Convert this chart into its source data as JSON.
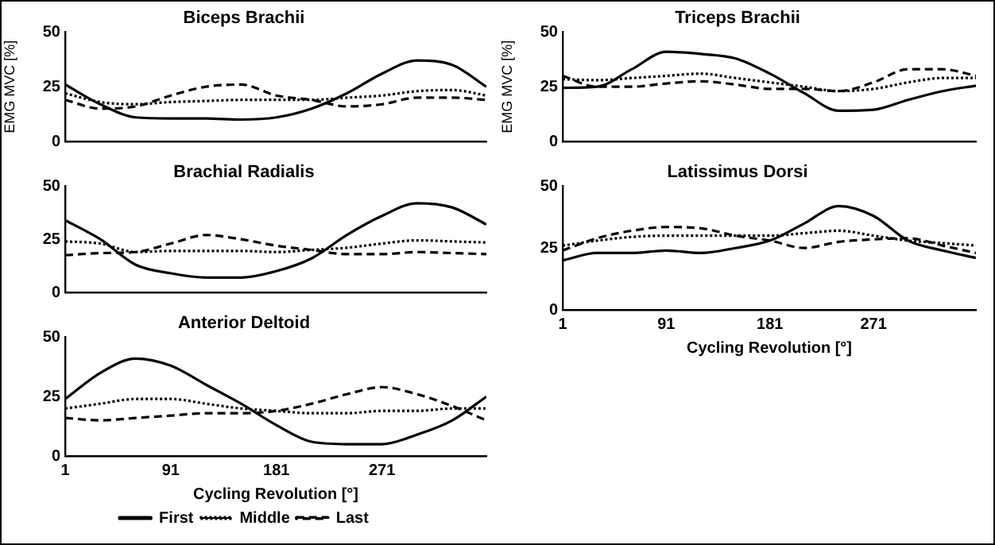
{
  "chart_data": [
    {
      "type": "line",
      "title": "Biceps Brachii",
      "ylabel": "EMG MVC [%]",
      "x": [
        1,
        31,
        61,
        91,
        121,
        151,
        181,
        211,
        241,
        271,
        301,
        331,
        360
      ],
      "xlim": [
        1,
        360
      ],
      "xticks": [
        1,
        91,
        181,
        271
      ],
      "ylim": [
        0,
        50
      ],
      "yticks": [
        0,
        25,
        50
      ],
      "tick_labels": "y",
      "marker": "none",
      "series": [
        {
          "color": "#000000",
          "line_style": "solid",
          "values": [
            26,
            17,
            11,
            10.5,
            10.5,
            10,
            11,
            15,
            22,
            31,
            37,
            35,
            25
          ]
        },
        {
          "color": "#000000",
          "line_style": "dotted",
          "values": [
            22,
            18,
            17,
            18,
            18.5,
            19,
            19,
            19,
            20,
            21,
            23,
            23.5,
            21
          ]
        },
        {
          "color": "#000000",
          "line_style": "dashed",
          "values": [
            19,
            15,
            16,
            21,
            25,
            26,
            21,
            19,
            16,
            17,
            20,
            20,
            19
          ]
        }
      ]
    },
    {
      "type": "line",
      "title": "Triceps Brachii",
      "ylabel": "EMG MVC [%]",
      "x": [
        1,
        31,
        61,
        91,
        121,
        151,
        181,
        211,
        241,
        271,
        301,
        331,
        360
      ],
      "xlim": [
        1,
        360
      ],
      "xticks": [
        1,
        91,
        181,
        271
      ],
      "ylim": [
        0,
        50
      ],
      "yticks": [
        0,
        25,
        50
      ],
      "tick_labels": "y",
      "marker": "none",
      "series": [
        {
          "color": "#000000",
          "line_style": "solid",
          "values": [
            24.5,
            25,
            33,
            41,
            40,
            38,
            31,
            22,
            14,
            14.5,
            19,
            23,
            25.5
          ]
        },
        {
          "color": "#000000",
          "line_style": "dotted",
          "values": [
            28.5,
            28,
            29,
            30,
            31,
            29,
            27,
            25,
            23,
            24,
            27,
            29,
            29
          ]
        },
        {
          "color": "#000000",
          "line_style": "dashed",
          "values": [
            30,
            25,
            25,
            26.5,
            27.5,
            26,
            24,
            24,
            23,
            27,
            33,
            33,
            30
          ]
        }
      ]
    },
    {
      "type": "line",
      "title": "Brachial Radialis",
      "x": [
        1,
        31,
        61,
        91,
        121,
        151,
        181,
        211,
        241,
        271,
        301,
        331,
        360
      ],
      "xlim": [
        1,
        360
      ],
      "xticks": [
        1,
        91,
        181,
        271
      ],
      "ylim": [
        0,
        50
      ],
      "yticks": [
        0,
        25,
        50
      ],
      "tick_labels": "y",
      "marker": "none",
      "series": [
        {
          "color": "#000000",
          "line_style": "solid",
          "values": [
            34,
            25,
            13,
            9,
            7,
            7,
            10,
            16,
            27,
            36,
            42,
            40,
            32
          ]
        },
        {
          "color": "#000000",
          "line_style": "dotted",
          "values": [
            24,
            23,
            19,
            19.5,
            19.5,
            19.5,
            19,
            20,
            21,
            23,
            24.5,
            24,
            23.5
          ]
        },
        {
          "color": "#000000",
          "line_style": "dashed",
          "values": [
            17.5,
            18.5,
            19,
            23,
            27,
            25,
            22,
            20,
            18,
            18,
            19,
            18.5,
            18
          ]
        }
      ]
    },
    {
      "type": "line",
      "title": "Latissimus Dorsi",
      "xlabel": "Cycling Revolution [°]",
      "x": [
        1,
        31,
        61,
        91,
        121,
        151,
        181,
        211,
        241,
        271,
        301,
        331,
        360
      ],
      "xlim": [
        1,
        360
      ],
      "xticks": [
        1,
        91,
        181,
        271
      ],
      "ylim": [
        0,
        50
      ],
      "yticks": [
        0,
        25,
        50
      ],
      "marker": "none",
      "series": [
        {
          "color": "#000000",
          "line_style": "solid",
          "values": [
            20,
            23,
            23,
            24,
            23,
            25,
            28,
            35,
            42,
            38,
            28,
            24,
            21
          ]
        },
        {
          "color": "#000000",
          "line_style": "dotted",
          "values": [
            26,
            28,
            29.5,
            30,
            30,
            30,
            30,
            31,
            32,
            30,
            28,
            27,
            26
          ]
        },
        {
          "color": "#000000",
          "line_style": "dashed",
          "values": [
            24,
            29,
            32,
            33.5,
            33,
            30,
            28,
            25,
            27.5,
            28.5,
            29,
            26,
            23
          ]
        }
      ]
    },
    {
      "type": "line",
      "title": "Anterior Deltoid",
      "xlabel": "Cycling Revolution [°]",
      "x": [
        1,
        31,
        61,
        91,
        121,
        151,
        181,
        211,
        241,
        271,
        301,
        331,
        360
      ],
      "xlim": [
        1,
        360
      ],
      "xticks": [
        1,
        91,
        181,
        271
      ],
      "ylim": [
        0,
        50
      ],
      "yticks": [
        0,
        25,
        50
      ],
      "marker": "none",
      "legend": "bottom",
      "series": [
        {
          "name": "First",
          "color": "#000000",
          "line_style": "solid",
          "values": [
            24,
            35,
            41,
            38,
            30,
            22,
            13,
            6,
            5,
            5,
            9,
            15,
            25
          ]
        },
        {
          "name": "Middle",
          "color": "#000000",
          "line_style": "dotted",
          "values": [
            20,
            22,
            24,
            24,
            22,
            20,
            19,
            18,
            18,
            19,
            19,
            20,
            20
          ]
        },
        {
          "name": "Last",
          "color": "#000000",
          "line_style": "dashed",
          "values": [
            16,
            15,
            16,
            17,
            18,
            18,
            19,
            22,
            26,
            29,
            26,
            21,
            15
          ]
        }
      ]
    }
  ]
}
